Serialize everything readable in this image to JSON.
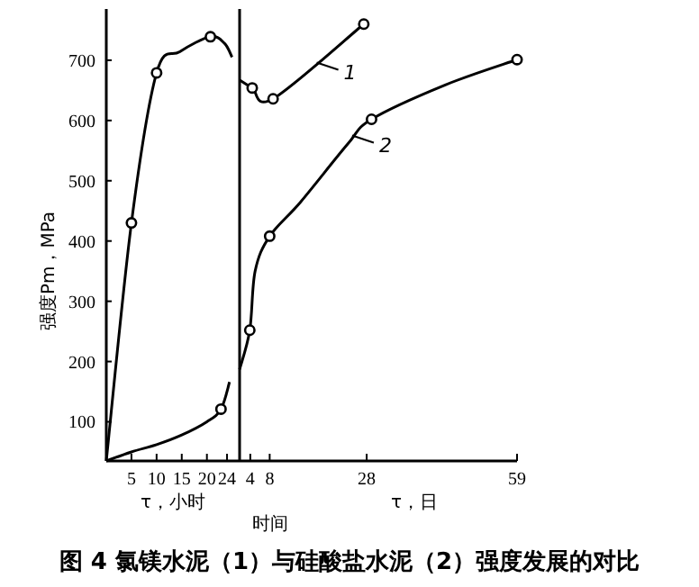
{
  "chart_data": [
    {
      "type": "line",
      "ylabel": "强度Pm，MPa",
      "xlabel": "τ，小时",
      "xlim": [
        0,
        26.5
      ],
      "xticks": [
        5,
        10,
        15,
        20,
        24
      ],
      "ylim": [
        35,
        785
      ],
      "yticks": [
        100,
        200,
        300,
        400,
        500,
        600,
        700
      ],
      "grid": false,
      "series": [
        {
          "type": "line",
          "color": "#000000",
          "marker": "none",
          "x": [
            0,
            5,
            10,
            14.6,
            20.7,
            23.5,
            25
          ],
          "values": [
            35,
            430,
            679,
            714,
            739,
            728,
            705
          ]
        },
        {
          "type": "scatter",
          "color": "#000000",
          "marker": "circle",
          "x": [
            5,
            10,
            20.7
          ],
          "values": [
            430,
            679,
            739
          ]
        },
        {
          "type": "line",
          "color": "#000000",
          "marker": "none",
          "x": [
            0,
            5,
            10,
            15,
            20,
            22.8,
            24.5
          ],
          "values": [
            35,
            50,
            62,
            78,
            100,
            121,
            166
          ]
        },
        {
          "type": "scatter",
          "color": "#000000",
          "marker": "circle",
          "x": [
            22.8
          ],
          "values": [
            121
          ]
        }
      ],
      "annotations": [
        "图 4 氯镁水泥（1）与硅酸盐水泥（2）强度发展的对比"
      ]
    },
    {
      "type": "line",
      "xlabel": "τ，日",
      "xlim": [
        1.8,
        59
      ],
      "xticks": [
        4,
        8,
        28,
        59
      ],
      "ylim": [
        35,
        785
      ],
      "tick_labels": "x",
      "grid": false,
      "series": [
        {
          "type": "line",
          "color": "#000000",
          "marker": "none",
          "x": [
            1.8,
            4.4,
            8.7,
            27.4
          ],
          "values": [
            667,
            654,
            636,
            760
          ]
        },
        {
          "type": "scatter",
          "color": "#000000",
          "marker": "circle",
          "x": [
            4.4,
            8.7,
            27.4
          ],
          "values": [
            654,
            636,
            760
          ]
        },
        {
          "type": "line",
          "color": "#000000",
          "marker": "none",
          "x": [
            1.8,
            3.9,
            5,
            8,
            14.4,
            24,
            29,
            44.2,
            59
          ],
          "values": [
            187,
            252,
            350,
            408,
            465,
            560,
            602,
            659,
            701
          ]
        },
        {
          "type": "scatter",
          "color": "#000000",
          "marker": "circle",
          "x": [
            3.9,
            8,
            29,
            59
          ],
          "values": [
            252,
            408,
            602,
            701
          ]
        }
      ],
      "annotations": [
        {
          "text": "1",
          "x": 17.7,
          "y": 696
        },
        {
          "text": "2",
          "x": 25,
          "y": 575
        },
        "时间"
      ]
    }
  ]
}
